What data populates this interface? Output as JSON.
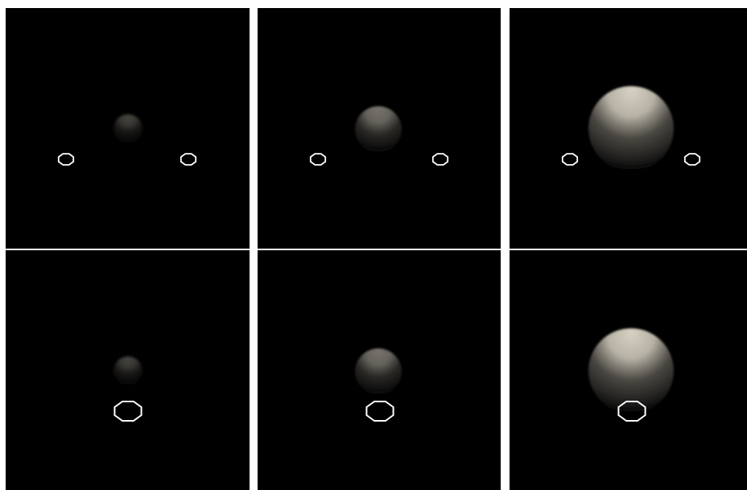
{
  "figure": {
    "background_color": "#000000",
    "separator_color": "#ffffff",
    "marker_color": "#ffffff",
    "sphere_highlight_color": "#d6d1c2",
    "sphere_shadow_color": "#000000",
    "rows": [
      {
        "view": "two-side-markers",
        "panels": [
          {
            "brightness": 0.32,
            "size_level": "small"
          },
          {
            "brightness": 0.55,
            "size_level": "medium"
          },
          {
            "brightness": 1.0,
            "size_level": "large"
          }
        ]
      },
      {
        "view": "single-bottom-marker",
        "panels": [
          {
            "brightness": 0.32,
            "size_level": "small"
          },
          {
            "brightness": 0.55,
            "size_level": "medium"
          },
          {
            "brightness": 1.0,
            "size_level": "large"
          }
        ]
      }
    ]
  }
}
